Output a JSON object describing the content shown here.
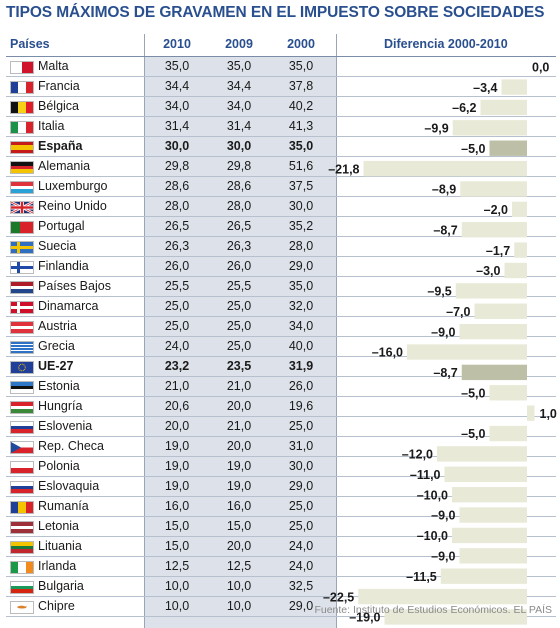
{
  "title": "TIPOS MÁXIMOS DE GRAVAMEN EN EL IMPUESTO SOBRE SOCIEDADES",
  "headers": {
    "country": "Países",
    "y2010": "2010",
    "y2009": "2009",
    "y2000": "2000",
    "diff": "Diferencia 2000-2010"
  },
  "footer": "Fuente: Instituto de Estudios Económicos.  EL PAÍS",
  "colors": {
    "title": "#2a4f8f",
    "bar": "#e8ead7",
    "bar_highlight": "#bdbfa6",
    "column_bg": "#dde2ea"
  },
  "rows": [
    {
      "name": "Malta",
      "v2010": "35,0",
      "v2009": "35,0",
      "v2000": "35,0",
      "diff": "0,0",
      "flag": "malta-flag"
    },
    {
      "name": "Francia",
      "v2010": "34,4",
      "v2009": "34,4",
      "v2000": "37,8",
      "diff": "–3,4",
      "flag": "france-flag"
    },
    {
      "name": "Bélgica",
      "v2010": "34,0",
      "v2009": "34,0",
      "v2000": "40,2",
      "diff": "–6,2",
      "flag": "belgium-flag"
    },
    {
      "name": "Italia",
      "v2010": "31,4",
      "v2009": "31,4",
      "v2000": "41,3",
      "diff": "–9,9",
      "flag": "italy-flag"
    },
    {
      "name": "España",
      "v2010": "30,0",
      "v2009": "30,0",
      "v2000": "35,0",
      "diff": "–5,0",
      "flag": "spain-flag",
      "bold": true
    },
    {
      "name": "Alemania",
      "v2010": "29,8",
      "v2009": "29,8",
      "v2000": "51,6",
      "diff": "–21,8",
      "flag": "germany-flag"
    },
    {
      "name": "Luxemburgo",
      "v2010": "28,6",
      "v2009": "28,6",
      "v2000": "37,5",
      "diff": "–8,9",
      "flag": "luxembourg-flag"
    },
    {
      "name": "Reino Unido",
      "v2010": "28,0",
      "v2009": "28,0",
      "v2000": "30,0",
      "diff": "–2,0",
      "flag": "uk-flag"
    },
    {
      "name": "Portugal",
      "v2010": "26,5",
      "v2009": "26,5",
      "v2000": "35,2",
      "diff": "–8,7",
      "flag": "portugal-flag"
    },
    {
      "name": "Suecia",
      "v2010": "26,3",
      "v2009": "26,3",
      "v2000": "28,0",
      "diff": "–1,7",
      "flag": "sweden-flag"
    },
    {
      "name": "Finlandia",
      "v2010": "26,0",
      "v2009": "26,0",
      "v2000": "29,0",
      "diff": "–3,0",
      "flag": "finland-flag"
    },
    {
      "name": "Países Bajos",
      "v2010": "25,5",
      "v2009": "25,5",
      "v2000": "35,0",
      "diff": "–9,5",
      "flag": "netherlands-flag"
    },
    {
      "name": "Dinamarca",
      "v2010": "25,0",
      "v2009": "25,0",
      "v2000": "32,0",
      "diff": "–7,0",
      "flag": "denmark-flag"
    },
    {
      "name": "Austria",
      "v2010": "25,0",
      "v2009": "25,0",
      "v2000": "34,0",
      "diff": "–9,0",
      "flag": "austria-flag"
    },
    {
      "name": "Grecia",
      "v2010": "24,0",
      "v2009": "25,0",
      "v2000": "40,0",
      "diff": "–16,0",
      "flag": "greece-flag"
    },
    {
      "name": "UE-27",
      "v2010": "23,2",
      "v2009": "23,5",
      "v2000": "31,9",
      "diff": "–8,7",
      "flag": "eu-flag",
      "bold": true
    },
    {
      "name": "Estonia",
      "v2010": "21,0",
      "v2009": "21,0",
      "v2000": "26,0",
      "diff": "–5,0",
      "flag": "estonia-flag"
    },
    {
      "name": "Hungría",
      "v2010": "20,6",
      "v2009": "20,0",
      "v2000": "19,6",
      "diff": "1,0",
      "flag": "hungary-flag"
    },
    {
      "name": "Eslovenia",
      "v2010": "20,0",
      "v2009": "21,0",
      "v2000": "25,0",
      "diff": "–5,0",
      "flag": "slovenia-flag"
    },
    {
      "name": "Rep. Checa",
      "v2010": "19,0",
      "v2009": "20,0",
      "v2000": "31,0",
      "diff": "–12,0",
      "flag": "czech-flag"
    },
    {
      "name": "Polonia",
      "v2010": "19,0",
      "v2009": "19,0",
      "v2000": "30,0",
      "diff": "–11,0",
      "flag": "poland-flag"
    },
    {
      "name": "Eslovaquia",
      "v2010": "19,0",
      "v2009": "19,0",
      "v2000": "29,0",
      "diff": "–10,0",
      "flag": "slovakia-flag"
    },
    {
      "name": "Rumanía",
      "v2010": "16,0",
      "v2009": "16,0",
      "v2000": "25,0",
      "diff": "–9,0",
      "flag": "romania-flag"
    },
    {
      "name": "Letonia",
      "v2010": "15,0",
      "v2009": "15,0",
      "v2000": "25,0",
      "diff": "–10,0",
      "flag": "latvia-flag"
    },
    {
      "name": "Lituania",
      "v2010": "15,0",
      "v2009": "20,0",
      "v2000": "24,0",
      "diff": "–9,0",
      "flag": "lithuania-flag"
    },
    {
      "name": "Irlanda",
      "v2010": "12,5",
      "v2009": "12,5",
      "v2000": "24,0",
      "diff": "–11,5",
      "flag": "ireland-flag"
    },
    {
      "name": "Bulgaria",
      "v2010": "10,0",
      "v2009": "10,0",
      "v2000": "32,5",
      "diff": "–22,5",
      "flag": "bulgaria-flag"
    },
    {
      "name": "Chipre",
      "v2010": "10,0",
      "v2009": "10,0",
      "v2000": "29,0",
      "diff": "–19,0",
      "flag": "cyprus-flag"
    }
  ],
  "chart_data": {
    "type": "bar",
    "title": "TIPOS MÁXIMOS DE GRAVAMEN EN EL IMPUESTO SOBRE SOCIEDADES",
    "categories": [
      "Malta",
      "Francia",
      "Bélgica",
      "Italia",
      "España",
      "Alemania",
      "Luxemburgo",
      "Reino Unido",
      "Portugal",
      "Suecia",
      "Finlandia",
      "Países Bajos",
      "Dinamarca",
      "Austria",
      "Grecia",
      "UE-27",
      "Estonia",
      "Hungría",
      "Eslovenia",
      "Rep. Checa",
      "Polonia",
      "Eslovaquia",
      "Rumanía",
      "Letonia",
      "Lituania",
      "Irlanda",
      "Bulgaria",
      "Chipre"
    ],
    "series": [
      {
        "name": "2010",
        "values": [
          35.0,
          34.4,
          34.0,
          31.4,
          30.0,
          29.8,
          28.6,
          28.0,
          26.5,
          26.3,
          26.0,
          25.5,
          25.0,
          25.0,
          24.0,
          23.2,
          21.0,
          20.6,
          20.0,
          19.0,
          19.0,
          19.0,
          16.0,
          15.0,
          15.0,
          12.5,
          10.0,
          10.0
        ]
      },
      {
        "name": "2009",
        "values": [
          35.0,
          34.4,
          34.0,
          31.4,
          30.0,
          29.8,
          28.6,
          28.0,
          26.5,
          26.3,
          26.0,
          25.5,
          25.0,
          25.0,
          25.0,
          23.5,
          21.0,
          20.0,
          21.0,
          20.0,
          19.0,
          19.0,
          16.0,
          15.0,
          20.0,
          12.5,
          10.0,
          10.0
        ]
      },
      {
        "name": "2000",
        "values": [
          35.0,
          37.8,
          40.2,
          41.3,
          35.0,
          51.6,
          37.5,
          30.0,
          35.2,
          28.0,
          29.0,
          35.0,
          32.0,
          34.0,
          40.0,
          31.9,
          26.0,
          19.6,
          25.0,
          31.0,
          30.0,
          29.0,
          25.0,
          25.0,
          24.0,
          24.0,
          32.5,
          29.0
        ]
      },
      {
        "name": "Diferencia 2000-2010",
        "values": [
          0.0,
          -3.4,
          -6.2,
          -9.9,
          -5.0,
          -21.8,
          -8.9,
          -2.0,
          -8.7,
          -1.7,
          -3.0,
          -9.5,
          -7.0,
          -9.0,
          -16.0,
          -8.7,
          -5.0,
          1.0,
          -5.0,
          -12.0,
          -11.0,
          -10.0,
          -9.0,
          -10.0,
          -9.0,
          -11.5,
          -22.5,
          -19.0
        ]
      }
    ],
    "highlight": [
      "España",
      "UE-27"
    ]
  }
}
